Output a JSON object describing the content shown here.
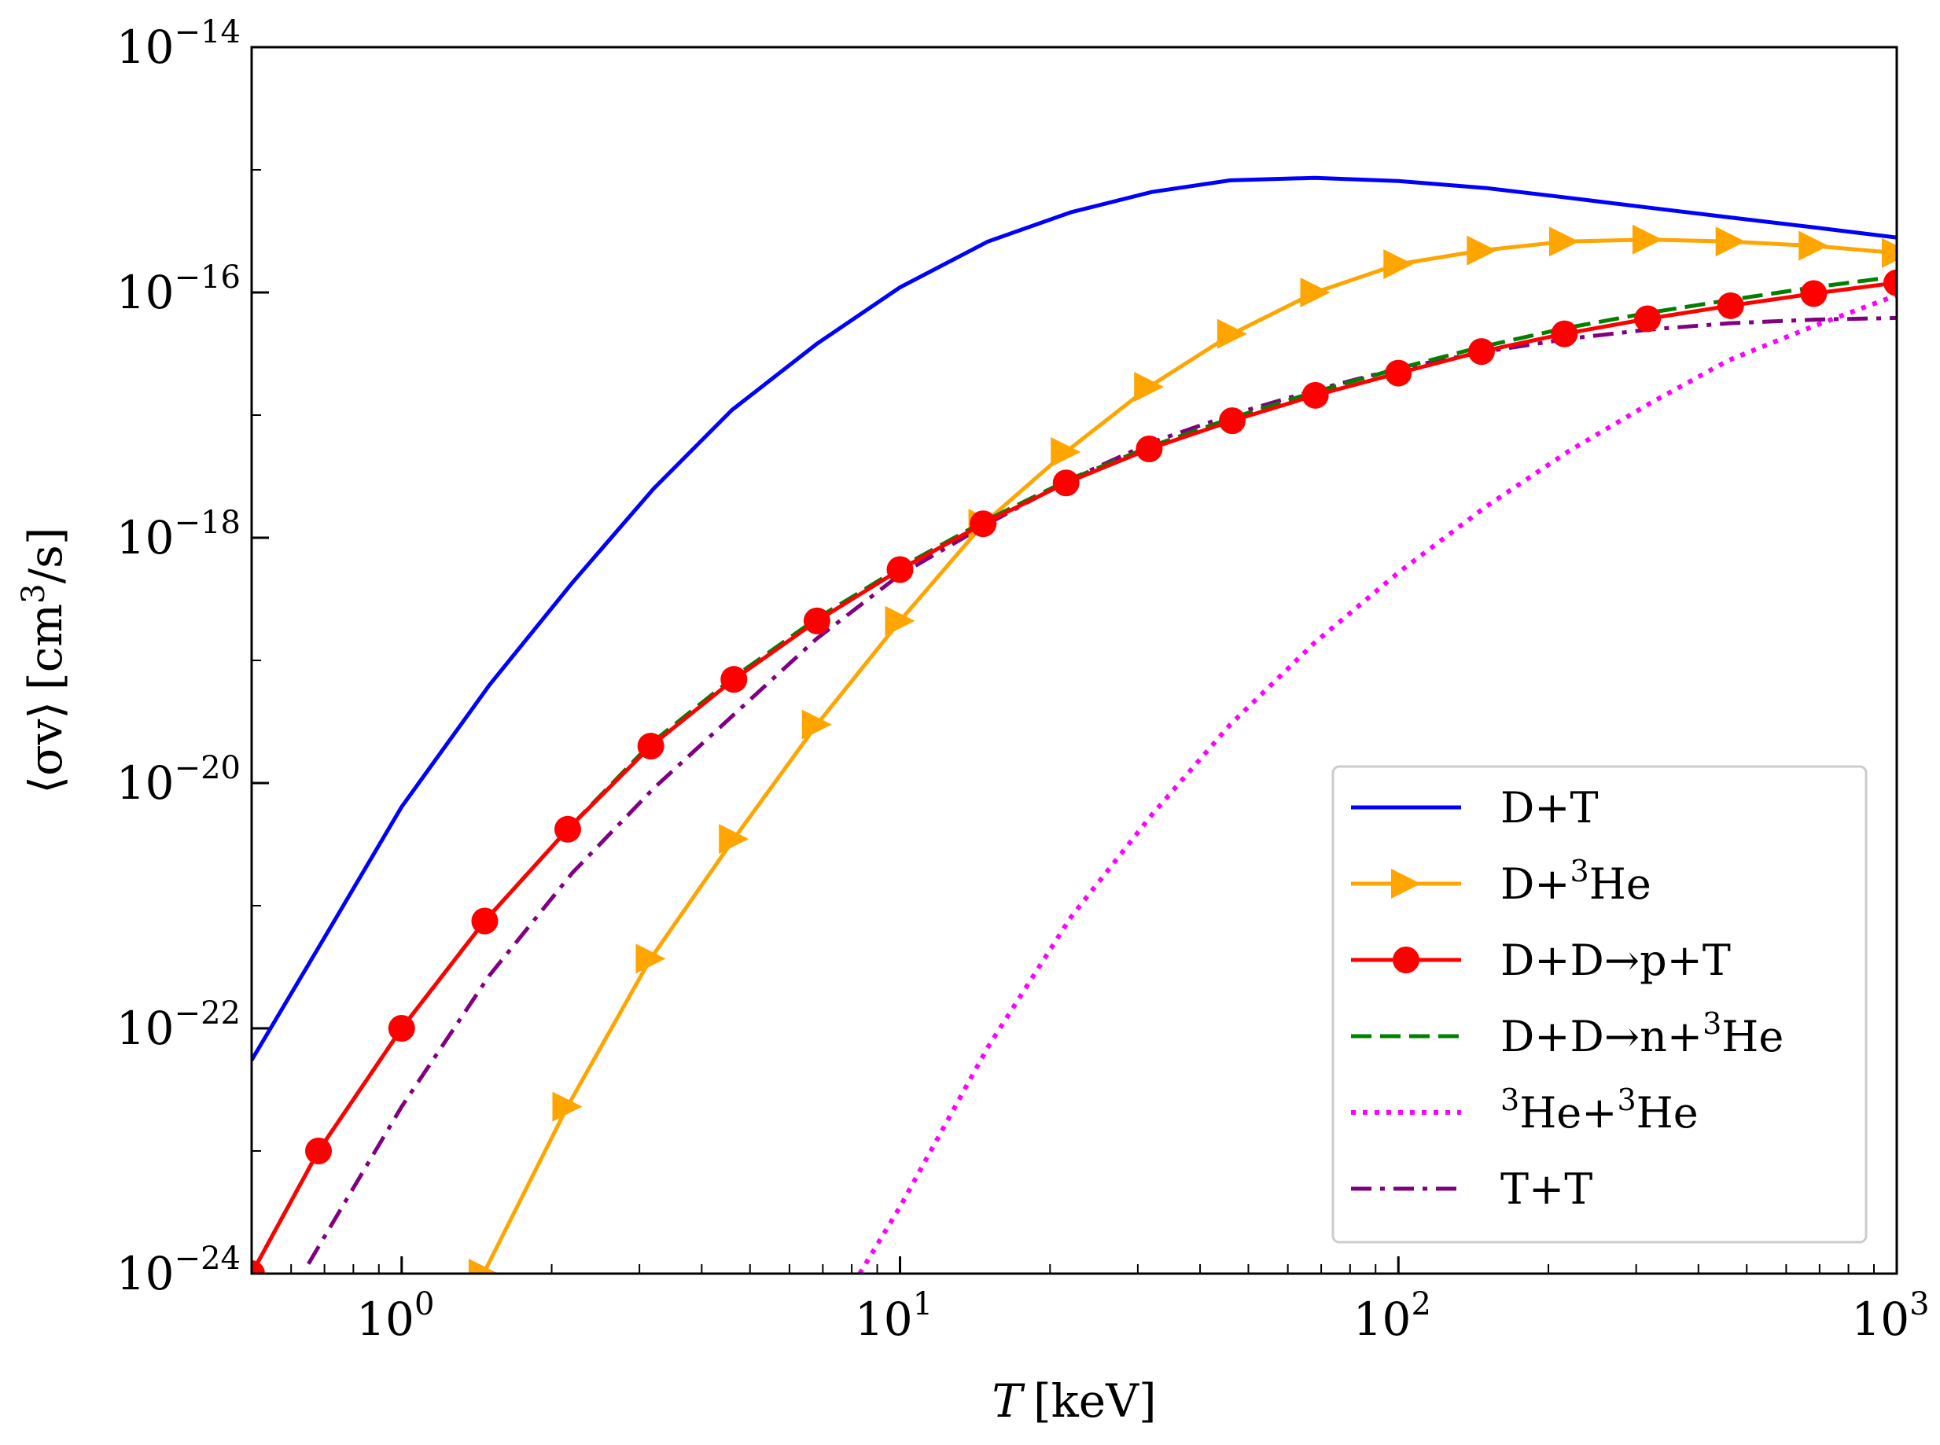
{
  "chart_data": {
    "type": "line",
    "xscale": "log",
    "yscale": "log",
    "xlabel": "T",
    "xlabel_unit": "[keV]",
    "ylabel": "⟨σv⟩",
    "ylabel_unit": "[cm",
    "ylabel_unit_sup": "3",
    "ylabel_unit_end": "/s]",
    "xlim": [
      0.5,
      1000
    ],
    "ylim": [
      1e-24,
      1e-14
    ],
    "x_ticks": [
      {
        "base": "10",
        "exp": "0",
        "value": 1
      },
      {
        "base": "10",
        "exp": "1",
        "value": 10
      },
      {
        "base": "10",
        "exp": "2",
        "value": 100
      },
      {
        "base": "10",
        "exp": "3",
        "value": 1000
      }
    ],
    "y_ticks": [
      {
        "base": "10",
        "exp": "−24",
        "value": 1e-24
      },
      {
        "base": "10",
        "exp": "−22",
        "value": 1e-22
      },
      {
        "base": "10",
        "exp": "−20",
        "value": 1e-20
      },
      {
        "base": "10",
        "exp": "−18",
        "value": 1e-18
      },
      {
        "base": "10",
        "exp": "−16",
        "value": 1e-16
      },
      {
        "base": "10",
        "exp": "−14",
        "value": 1e-14
      }
    ],
    "legend_position": "lower-right",
    "series": [
      {
        "name": "D+T",
        "label": "D+T",
        "color": "#0000ff",
        "style": "solid",
        "marker": "none",
        "x": [
          0.5,
          0.7,
          1.0,
          1.5,
          2.2,
          3.2,
          4.6,
          6.8,
          10,
          15,
          22,
          32,
          46,
          68,
          100,
          150,
          220,
          320,
          460,
          680,
          1000
        ],
        "y": [
          5.5e-23,
          5.5e-22,
          6.4e-21,
          6.3e-20,
          4.3e-19,
          2.5e-18,
          1.1e-17,
          3.8e-17,
          1.1e-16,
          2.6e-16,
          4.5e-16,
          6.6e-16,
          8.2e-16,
          8.6e-16,
          8.1e-16,
          7.1e-16,
          5.9e-16,
          4.9e-16,
          4.1e-16,
          3.4e-16,
          2.8e-16
        ]
      },
      {
        "name": "D+3He",
        "label": "D+",
        "label_sup": "3",
        "label_end": "He",
        "color": "#ffa500",
        "style": "solid",
        "marker": "triangle-right",
        "x": [
          1.46,
          2.15,
          3.16,
          4.64,
          6.81,
          10,
          14.7,
          21.5,
          31.6,
          46.4,
          68.1,
          100,
          147,
          215,
          316,
          464,
          681,
          1000
        ],
        "y": [
          1e-24,
          2.3e-23,
          3.7e-22,
          3.5e-21,
          3e-20,
          2.1e-19,
          1.3e-18,
          5e-18,
          1.7e-17,
          4.6e-17,
          1e-16,
          1.7e-16,
          2.2e-16,
          2.6e-16,
          2.7e-16,
          2.6e-16,
          2.4e-16,
          2.1e-16
        ]
      },
      {
        "name": "D+D->p+T",
        "label": "D+D→p+T",
        "color": "#ff0000",
        "style": "solid",
        "marker": "circle",
        "x": [
          0.5,
          0.681,
          1.0,
          1.468,
          2.154,
          3.162,
          4.642,
          6.813,
          10,
          14.68,
          21.54,
          31.62,
          46.42,
          68.13,
          100,
          146.8,
          215.4,
          316.2,
          464.2,
          681.3,
          1000
        ],
        "y": [
          1e-24,
          1e-23,
          1e-22,
          7.5e-22,
          4.2e-21,
          2e-20,
          7e-20,
          2.1e-19,
          5.5e-19,
          1.3e-18,
          2.8e-18,
          5.3e-18,
          9e-18,
          1.45e-17,
          2.2e-17,
          3.3e-17,
          4.6e-17,
          6.1e-17,
          7.8e-17,
          9.8e-17,
          1.2e-16
        ]
      },
      {
        "name": "D+D->n+3He",
        "label": "D+D→n+",
        "label_sup": "3",
        "label_end": "He",
        "color": "#008000",
        "style": "dashed",
        "marker": "none",
        "x": [
          0.5,
          0.681,
          1.0,
          1.468,
          2.154,
          3.162,
          4.642,
          6.813,
          10,
          14.68,
          21.54,
          31.62,
          46.42,
          68.13,
          100,
          146.8,
          215.4,
          316.2,
          464.2,
          681.3,
          1000
        ],
        "y": [
          1e-24,
          1e-23,
          1e-22,
          7.5e-22,
          4.2e-21,
          2.1e-20,
          7.3e-20,
          2.2e-19,
          5.7e-19,
          1.35e-18,
          2.9e-18,
          5.5e-18,
          9.5e-18,
          1.55e-17,
          2.4e-17,
          3.6e-17,
          5.1e-17,
          6.8e-17,
          8.7e-17,
          1.1e-16,
          1.35e-16
        ]
      },
      {
        "name": "3He+3He",
        "label_pre_sup": "3",
        "label": "He+",
        "label_sup": "3",
        "label_end": "He",
        "color": "#ff00ff",
        "style": "dotted",
        "marker": "none",
        "x": [
          8.3,
          10,
          15,
          22,
          32,
          46,
          68,
          100,
          150,
          220,
          320,
          460,
          680,
          1000
        ],
        "y": [
          1e-24,
          3.5e-24,
          7e-23,
          8e-22,
          5.5e-21,
          3e-20,
          1.4e-19,
          5.2e-19,
          1.8e-18,
          5.1e-18,
          1.25e-17,
          2.8e-17,
          5.3e-17,
          9.5e-17
        ]
      },
      {
        "name": "T+T",
        "label": "T+T",
        "color": "#800080",
        "style": "dashdot",
        "marker": "none",
        "x": [
          0.65,
          0.8,
          1.0,
          1.5,
          2.2,
          3.2,
          4.6,
          6.8,
          10,
          15,
          22,
          32,
          46,
          68,
          100,
          150,
          220,
          320,
          460,
          680,
          1000
        ],
        "y": [
          1.2e-24,
          5e-24,
          2.3e-23,
          2.7e-22,
          1.85e-21,
          9e-21,
          3.5e-20,
          1.5e-19,
          5e-19,
          1.3e-18,
          3e-18,
          6e-18,
          1e-17,
          1.6e-17,
          2.4e-17,
          3.3e-17,
          4.2e-17,
          5e-17,
          5.6e-17,
          6e-17,
          6.2e-17
        ]
      }
    ]
  }
}
